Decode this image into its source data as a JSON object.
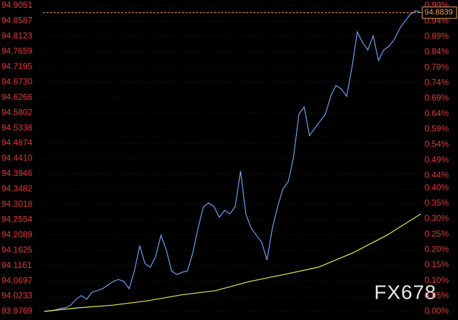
{
  "chart_data": {
    "type": "line",
    "ylim": [
      93.9769,
      94.9051
    ],
    "yticks": [
      94.9051,
      94.8587,
      94.8123,
      94.7659,
      94.7195,
      {
        "value": 94.673,
        "label": "94.6730"
      },
      94.6266,
      94.5802,
      94.5338,
      94.4874,
      {
        "value": 94.441,
        "label": "94.4410"
      },
      94.3946,
      94.3482,
      94.3018,
      94.2554,
      94.2089,
      94.1625,
      94.1161,
      94.0697,
      94.0233,
      93.9769
    ],
    "y2lim": [
      0,
      0.99
    ],
    "y2ticks": [
      {
        "value": 0.99,
        "label": "0.99%"
      },
      {
        "value": 0.94,
        "label": "0.94%"
      },
      {
        "value": 0.89,
        "label": "0.89%"
      },
      {
        "value": 0.84,
        "label": "0.84%"
      },
      {
        "value": 0.79,
        "label": "0.79%"
      },
      {
        "value": 0.74,
        "label": "0.74%"
      },
      {
        "value": 0.69,
        "label": "0.69%"
      },
      {
        "value": 0.64,
        "label": "0.64%"
      },
      {
        "value": 0.59,
        "label": "0.59%"
      },
      {
        "value": 0.54,
        "label": "0.54%"
      },
      {
        "value": 0.49,
        "label": "0.49%"
      },
      {
        "value": 0.44,
        "label": "0.44%"
      },
      {
        "value": 0.4,
        "label": "0.40%"
      },
      {
        "value": 0.35,
        "label": "0.35%"
      },
      {
        "value": 0.3,
        "label": "0.30%"
      },
      {
        "value": 0.25,
        "label": "0.25%"
      },
      {
        "value": 0.2,
        "label": "0.20%"
      },
      {
        "value": 0.15,
        "label": "0.15%"
      },
      {
        "value": 0.1,
        "label": "0.10%"
      },
      {
        "value": 0.05,
        "label": "0.05%"
      },
      {
        "value": 0,
        "label": "0.00%"
      }
    ],
    "grid": true,
    "series": [
      {
        "color": "#6d9ff0",
        "area": true,
        "values": [
          93.977,
          93.979,
          93.981,
          93.986,
          93.988,
          93.996,
          94.014,
          94.025,
          94.014,
          94.035,
          94.04,
          94.046,
          94.057,
          94.068,
          94.074,
          94.068,
          94.046,
          94.1,
          94.176,
          94.122,
          94.111,
          94.144,
          94.208,
          94.165,
          94.1,
          94.089,
          94.096,
          94.1,
          94.154,
          94.23,
          94.295,
          94.306,
          94.295,
          94.263,
          94.284,
          94.273,
          94.295,
          94.403,
          94.273,
          94.23,
          94.208,
          94.187,
          94.133,
          94.23,
          94.295,
          94.349,
          94.371,
          94.446,
          94.576,
          94.598,
          94.511,
          94.533,
          94.555,
          94.576,
          94.63,
          94.663,
          94.652,
          94.63,
          94.717,
          94.825,
          94.793,
          94.771,
          94.814,
          94.739,
          94.771,
          94.782,
          94.803,
          94.836,
          94.858,
          94.879,
          94.89,
          94.8839
        ]
      },
      {
        "color": "#e8e85a",
        "area": false,
        "values": [
          93.977,
          93.988,
          93.996,
          94.009,
          94.027,
          94.04,
          94.068,
          94.089,
          94.111,
          94.154,
          94.208,
          94.273
        ]
      }
    ],
    "last_value": 94.8839,
    "watermark": "FX678"
  }
}
